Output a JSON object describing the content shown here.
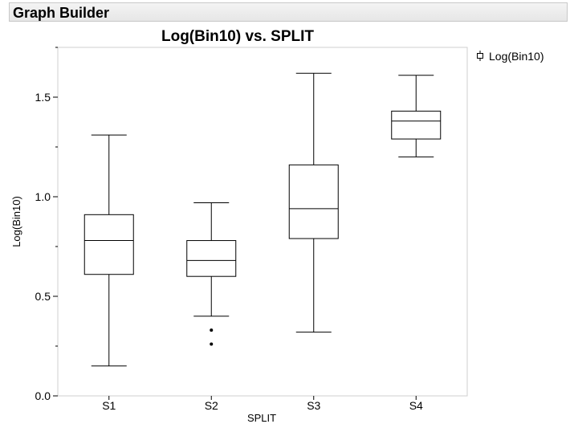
{
  "header": {
    "title": "Graph Builder"
  },
  "chart_data": {
    "type": "boxplot",
    "title": "Log(Bin10) vs. SPLIT",
    "xlabel": "SPLIT",
    "ylabel": "Log(Bin10)",
    "ylim": [
      0.0,
      1.75
    ],
    "yticks": [
      0.0,
      0.5,
      1.0,
      1.5
    ],
    "ytick_labels": [
      "0.0",
      "0.5",
      "1.0",
      "1.5"
    ],
    "minor_ticks": true,
    "grid": false,
    "legend": {
      "position": "top-right",
      "entries": [
        "Log(Bin10)"
      ]
    },
    "categories": [
      "S1",
      "S2",
      "S3",
      "S4"
    ],
    "boxes": [
      {
        "category": "S1",
        "min": 0.15,
        "q1": 0.61,
        "median": 0.78,
        "q3": 0.91,
        "max": 1.31,
        "outliers": []
      },
      {
        "category": "S2",
        "min": 0.4,
        "q1": 0.6,
        "median": 0.68,
        "q3": 0.78,
        "max": 0.97,
        "outliers": [
          0.33,
          0.26
        ]
      },
      {
        "category": "S3",
        "min": 0.32,
        "q1": 0.79,
        "median": 0.94,
        "q3": 1.16,
        "max": 1.62,
        "outliers": []
      },
      {
        "category": "S4",
        "min": 1.2,
        "q1": 1.29,
        "median": 1.38,
        "q3": 1.43,
        "max": 1.61,
        "outliers": []
      }
    ]
  }
}
